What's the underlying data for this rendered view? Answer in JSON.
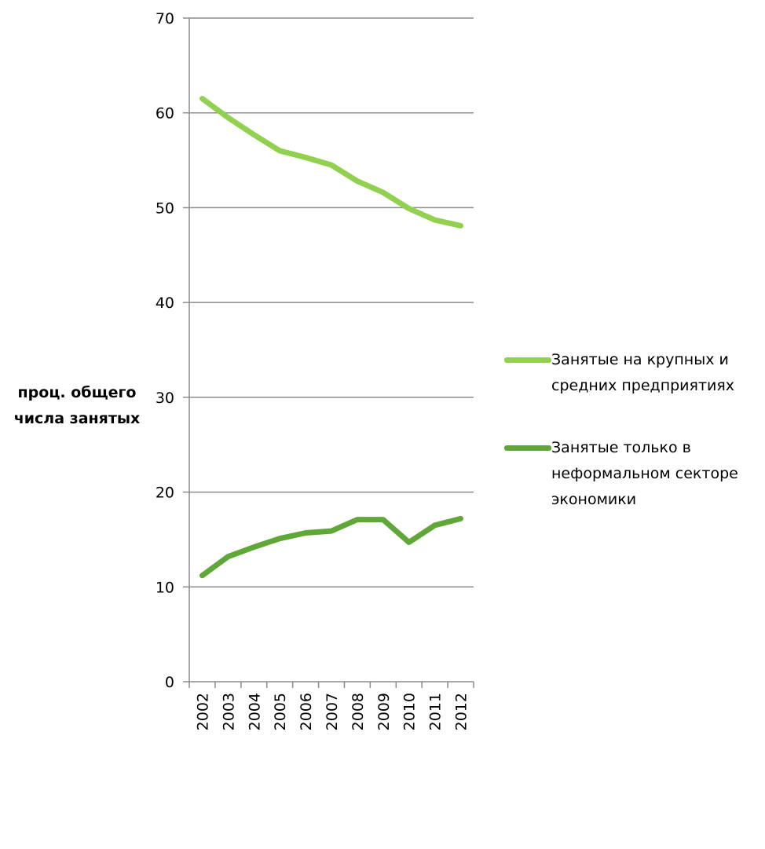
{
  "chart_data": {
    "type": "line",
    "x": [
      "2002",
      "2003",
      "2004",
      "2005",
      "2006",
      "2007",
      "2008",
      "2009",
      "2010",
      "2011",
      "2012"
    ],
    "series": [
      {
        "name": "Занятые на крупных и средних предприятиях",
        "color": "#92d050",
        "values": [
          61.5,
          59.5,
          57.7,
          56.0,
          55.3,
          54.5,
          52.8,
          51.6,
          49.9,
          48.7,
          48.1
        ]
      },
      {
        "name": "Занятые только в неформальном секторе экономики",
        "color": "#5fa838",
        "values": [
          11.2,
          13.2,
          14.2,
          15.1,
          15.7,
          15.9,
          17.1,
          17.1,
          14.7,
          16.5,
          17.2
        ]
      }
    ],
    "ylabel": "проц. общего числа занятых",
    "ylim": [
      0,
      70
    ],
    "yticks": [
      0,
      10,
      20,
      30,
      40,
      50,
      60,
      70
    ],
    "grid": true,
    "legend_position": "right"
  }
}
